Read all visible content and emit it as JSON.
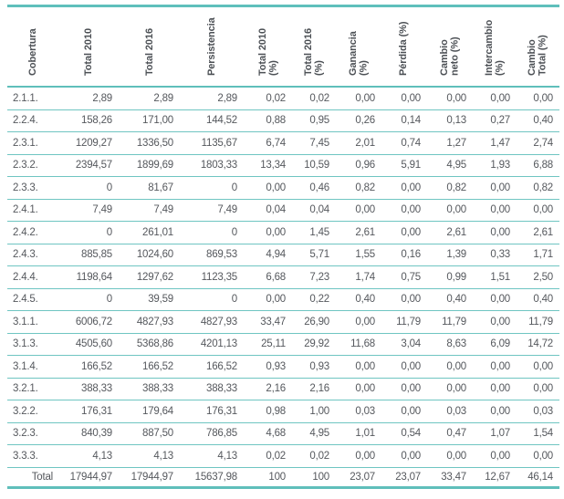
{
  "colors": {
    "accent_teal": "#5fbfbb",
    "row_line_teal": "#6fc5c2",
    "body_text": "#55585d",
    "header_text": "#4c5055"
  },
  "table": {
    "columns": [
      {
        "key": "cobertura",
        "label": "Cobertura"
      },
      {
        "key": "total-2010",
        "label": "Total 2010"
      },
      {
        "key": "total-2016",
        "label": "Total 2016"
      },
      {
        "key": "persistencia",
        "label": "Persistencia"
      },
      {
        "key": "total-2010-pct",
        "label": "Total 2010\n(%)"
      },
      {
        "key": "total-2016-pct",
        "label": "Total 2016\n(%)"
      },
      {
        "key": "ganancia-pct",
        "label": "Ganancia\n(%)"
      },
      {
        "key": "perdida-pct",
        "label": "Pérdida (%)"
      },
      {
        "key": "cambio-neto-pct",
        "label": "Cambio\nneto (%)"
      },
      {
        "key": "intercambio-pct",
        "label": "Intercambio\n(%)"
      },
      {
        "key": "cambio-total-pct",
        "label": "Cambio\nTotal (%)"
      }
    ],
    "rows": [
      [
        "2.1.1.",
        "2,89",
        "2,89",
        "2,89",
        "0,02",
        "0,02",
        "0,00",
        "0,00",
        "0,00",
        "0,00",
        "0,00"
      ],
      [
        "2.2.4.",
        "158,26",
        "171,00",
        "144,52",
        "0,88",
        "0,95",
        "0,26",
        "0,14",
        "0,13",
        "0,27",
        "0,40"
      ],
      [
        "2.3.1.",
        "1209,27",
        "1336,50",
        "1135,67",
        "6,74",
        "7,45",
        "2,01",
        "0,74",
        "1,27",
        "1,47",
        "2,74"
      ],
      [
        "2.3.2.",
        "2394,57",
        "1899,69",
        "1803,33",
        "13,34",
        "10,59",
        "0,96",
        "5,91",
        "4,95",
        "1,93",
        "6,88"
      ],
      [
        "2.3.3.",
        "0",
        "81,67",
        "0",
        "0,00",
        "0,46",
        "0,82",
        "0,00",
        "0,82",
        "0,00",
        "0,82"
      ],
      [
        "2.4.1.",
        "7,49",
        "7,49",
        "7,49",
        "0,04",
        "0,04",
        "0,00",
        "0,00",
        "0,00",
        "0,00",
        "0,00"
      ],
      [
        "2.4.2.",
        "0",
        "261,01",
        "0",
        "0,00",
        "1,45",
        "2,61",
        "0,00",
        "2,61",
        "0,00",
        "2,61"
      ],
      [
        "2.4.3.",
        "885,85",
        "1024,60",
        "869,53",
        "4,94",
        "5,71",
        "1,55",
        "0,16",
        "1,39",
        "0,33",
        "1,71"
      ],
      [
        "2.4.4.",
        "1198,64",
        "1297,62",
        "1123,35",
        "6,68",
        "7,23",
        "1,74",
        "0,75",
        "0,99",
        "1,51",
        "2,50"
      ],
      [
        "2.4.5.",
        "0",
        "39,59",
        "0",
        "0,00",
        "0,22",
        "0,40",
        "0,00",
        "0,40",
        "0,00",
        "0,40"
      ],
      [
        "3.1.1.",
        "6006,72",
        "4827,93",
        "4827,93",
        "33,47",
        "26,90",
        "0,00",
        "11,79",
        "11,79",
        "0,00",
        "11,79"
      ],
      [
        "3.1.3.",
        "4505,60",
        "5368,86",
        "4201,13",
        "25,11",
        "29,92",
        "11,68",
        "3,04",
        "8,63",
        "6,09",
        "14,72"
      ],
      [
        "3.1.4.",
        "166,52",
        "166,52",
        "166,52",
        "0,93",
        "0,93",
        "0,00",
        "0,00",
        "0,00",
        "0,00",
        "0,00"
      ],
      [
        "3.2.1.",
        "388,33",
        "388,33",
        "388,33",
        "2,16",
        "2,16",
        "0,00",
        "0,00",
        "0,00",
        "0,00",
        "0,00"
      ],
      [
        "3.2.2.",
        "176,31",
        "179,64",
        "176,31",
        "0,98",
        "1,00",
        "0,03",
        "0,00",
        "0,03",
        "0,00",
        "0,03"
      ],
      [
        "3.2.3.",
        "840,39",
        "887,50",
        "786,85",
        "4,68",
        "4,95",
        "1,01",
        "0,54",
        "0,47",
        "1,07",
        "1,54"
      ],
      [
        "3.3.3.",
        "4,13",
        "4,13",
        "4,13",
        "0,02",
        "0,02",
        "0,00",
        "0,00",
        "0,00",
        "0,00",
        "0,00"
      ]
    ],
    "total_row": [
      "Total",
      "17944,97",
      "17944,97",
      "15637,98",
      "100",
      "100",
      "23,07",
      "23,07",
      "33,47",
      "12,67",
      "46,14"
    ]
  }
}
